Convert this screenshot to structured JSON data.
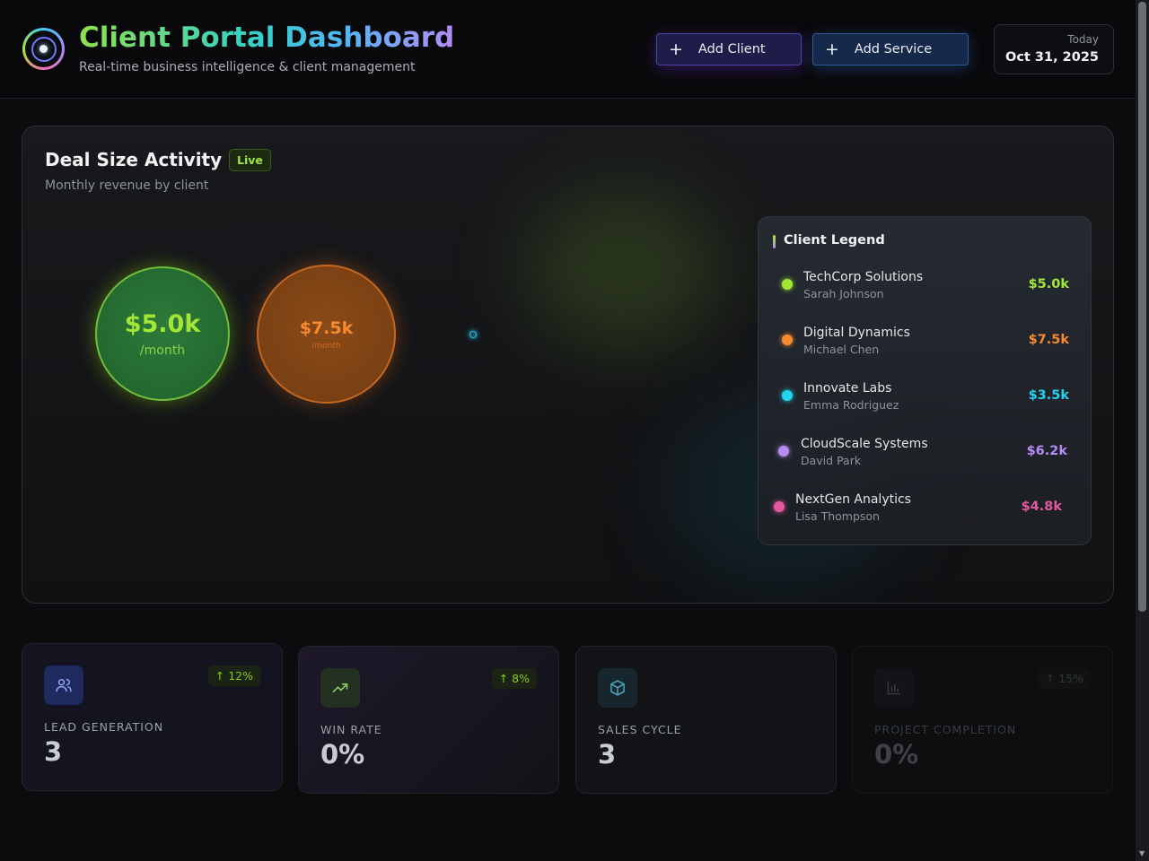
{
  "header": {
    "title": "Client Portal Dashboard",
    "subtitle": "Real-time business intelligence & client management",
    "add_client_label": "Add Client",
    "add_service_label": "Add Service",
    "today_label": "Today",
    "today_date": "Oct 31, 2025"
  },
  "chart_panel": {
    "title": "Deal Size Activity",
    "live_badge": "Live",
    "subtitle": "Monthly revenue by client",
    "bubbles": [
      {
        "value": "$5.0k",
        "per": "/month",
        "color": "#a3e635"
      },
      {
        "value": "$7.5k",
        "per": "/month",
        "color": "#f97316"
      },
      {
        "value": "",
        "per": "",
        "color": "#22d3ee"
      }
    ]
  },
  "legend": {
    "title": "Client Legend",
    "items": [
      {
        "name": "TechCorp Solutions",
        "person": "Sarah Johnson",
        "value": "$5.0k",
        "color": "#a3e635"
      },
      {
        "name": "Digital Dynamics",
        "person": "Michael Chen",
        "value": "$7.5k",
        "color": "#f58a2e"
      },
      {
        "name": "Innovate Labs",
        "person": "Emma Rodriguez",
        "value": "$3.5k",
        "color": "#22d3ee"
      },
      {
        "name": "CloudScale Systems",
        "person": "David Park",
        "value": "$6.2k",
        "color": "#b58cf5"
      },
      {
        "name": "NextGen Analytics",
        "person": "Lisa Thompson",
        "value": "$4.8k",
        "color": "#e2589f"
      }
    ]
  },
  "stats": [
    {
      "label": "LEAD GENERATION",
      "value": "3",
      "trend": "↑ 12%",
      "icon": "users-icon"
    },
    {
      "label": "WIN RATE",
      "value": "0%",
      "trend": "↑ 8%",
      "icon": "trending-up-icon"
    },
    {
      "label": "SALES CYCLE",
      "value": "3",
      "trend": "",
      "icon": "package-icon"
    },
    {
      "label": "PROJECT COMPLETION",
      "value": "0%",
      "trend": "↑ 15%",
      "icon": "bar-chart-icon"
    }
  ]
}
